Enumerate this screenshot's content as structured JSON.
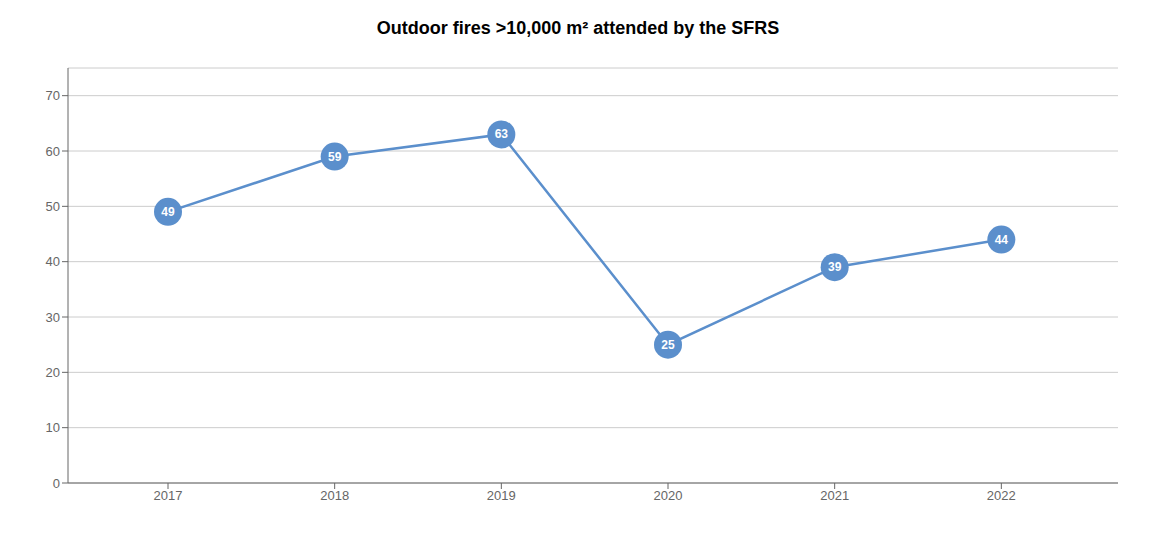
{
  "chart_data": {
    "type": "line",
    "title": "Outdoor fires >10,000 m² attended by the SFRS",
    "x": [
      2017,
      2018,
      2019,
      2020,
      2021,
      2022
    ],
    "values": [
      49,
      59,
      63,
      25,
      39,
      44
    ],
    "color": "#5B8FCC",
    "xlim": [
      2016.4,
      2022.7
    ],
    "xticks": [
      2017,
      2018,
      2019,
      2020,
      2021,
      2022
    ],
    "ylim": [
      0,
      75
    ],
    "yticks": [
      0,
      10,
      20,
      30,
      40,
      50,
      60,
      70
    ],
    "grid": true,
    "data_labels": true,
    "marker": "circle"
  }
}
